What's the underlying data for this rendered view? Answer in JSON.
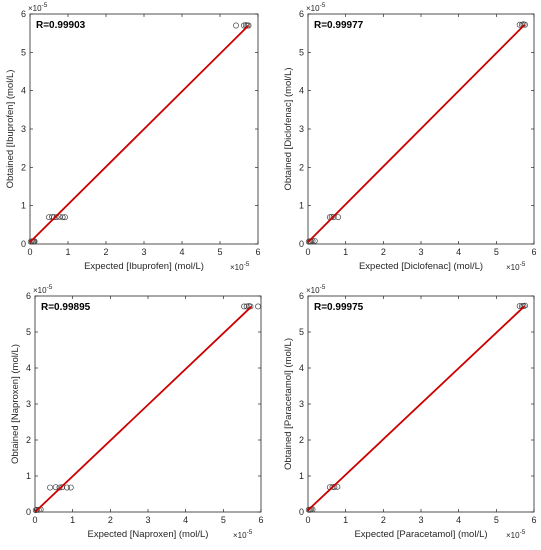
{
  "chart_data": [
    {
      "type": "scatter",
      "annotation": "R=0.99903",
      "xlabel": "Expected [Ibuprofen] (mol/L)",
      "ylabel": "Obtained [Ibuprofen] (mol/L)",
      "x_exponent": "×10",
      "x_exponent_power": "-5",
      "y_exponent": "×10",
      "y_exponent_power": "-5",
      "xlim": [
        0,
        6
      ],
      "ylim": [
        0,
        6
      ],
      "xticks": [
        "0",
        "1",
        "2",
        "3",
        "4",
        "5",
        "6"
      ],
      "yticks": [
        "0",
        "1",
        "2",
        "3",
        "4",
        "5",
        "6"
      ],
      "grid": false,
      "series": [
        {
          "marker": "circle-open",
          "color": "#444444",
          "x": [
            0.02,
            0.05,
            0.08,
            0.1,
            0.12,
            0.5,
            0.58,
            0.63,
            0.7,
            0.78,
            0.86,
            0.92,
            5.42,
            5.63,
            5.68,
            5.72,
            5.75
          ],
          "y": [
            0.06,
            0.07,
            0.06,
            0.07,
            0.07,
            0.7,
            0.71,
            0.7,
            0.7,
            0.71,
            0.7,
            0.7,
            5.7,
            5.7,
            5.71,
            5.7,
            5.7
          ]
        },
        {
          "type": "line",
          "color": "#cc0000",
          "x": [
            0.0,
            5.75
          ],
          "y": [
            0.05,
            5.7
          ]
        }
      ]
    },
    {
      "type": "scatter",
      "annotation": "R=0.99977",
      "xlabel": "Expected [Diclofenac] (mol/L)",
      "ylabel": "Obtained [Diclofenac] (mol/L)",
      "x_exponent": "×10",
      "x_exponent_power": "-5",
      "y_exponent": "×10",
      "y_exponent_power": "-5",
      "xlim": [
        0,
        6
      ],
      "ylim": [
        0,
        6
      ],
      "xticks": [
        "0",
        "1",
        "2",
        "3",
        "4",
        "5",
        "6"
      ],
      "yticks": [
        "0",
        "1",
        "2",
        "3",
        "4",
        "5",
        "6"
      ],
      "grid": false,
      "series": [
        {
          "marker": "circle-open",
          "color": "#444444",
          "x": [
            0.02,
            0.05,
            0.08,
            0.12,
            0.18,
            0.58,
            0.63,
            0.68,
            0.8,
            5.62,
            5.68,
            5.72,
            5.76
          ],
          "y": [
            0.06,
            0.07,
            0.07,
            0.08,
            0.08,
            0.7,
            0.71,
            0.7,
            0.7,
            5.72,
            5.72,
            5.73,
            5.72
          ]
        },
        {
          "type": "line",
          "color": "#cc0000",
          "x": [
            0.0,
            5.75
          ],
          "y": [
            0.05,
            5.72
          ]
        }
      ]
    },
    {
      "type": "scatter",
      "annotation": "R=0.99895",
      "xlabel": "Expected [Naproxen] (mol/L)",
      "ylabel": "Obtained [Naproxen] (mol/L)",
      "x_exponent": "×10",
      "x_exponent_power": "-5",
      "y_exponent": "×10",
      "y_exponent_power": "-5",
      "xlim": [
        0,
        6
      ],
      "ylim": [
        0,
        6
      ],
      "xticks": [
        "0",
        "1",
        "2",
        "3",
        "4",
        "5",
        "6"
      ],
      "yticks": [
        "0",
        "1",
        "2",
        "3",
        "4",
        "5",
        "6"
      ],
      "grid": false,
      "series": [
        {
          "marker": "circle-open",
          "color": "#444444",
          "x": [
            0.02,
            0.05,
            0.1,
            0.15,
            0.4,
            0.55,
            0.65,
            0.72,
            0.85,
            0.95,
            5.55,
            5.62,
            5.68,
            5.72,
            5.92
          ],
          "y": [
            0.05,
            0.06,
            0.06,
            0.07,
            0.68,
            0.69,
            0.68,
            0.69,
            0.68,
            0.68,
            5.71,
            5.71,
            5.72,
            5.71,
            5.71
          ]
        },
        {
          "type": "line",
          "color": "#cc0000",
          "x": [
            0.0,
            5.75
          ],
          "y": [
            0.0,
            5.71
          ]
        }
      ]
    },
    {
      "type": "scatter",
      "annotation": "R=0.99975",
      "xlabel": "Expected [Paracetamol] (mol/L)",
      "ylabel": "Obtained [Paracetamol] (mol/L)",
      "x_exponent": "×10",
      "x_exponent_power": "-5",
      "y_exponent": "×10",
      "y_exponent_power": "-5",
      "xlim": [
        0,
        6
      ],
      "ylim": [
        0,
        6
      ],
      "xticks": [
        "0",
        "1",
        "2",
        "3",
        "4",
        "5",
        "6"
      ],
      "yticks": [
        "0",
        "1",
        "2",
        "3",
        "4",
        "5",
        "6"
      ],
      "grid": false,
      "series": [
        {
          "marker": "circle-open",
          "color": "#444444",
          "x": [
            0.02,
            0.05,
            0.08,
            0.12,
            0.58,
            0.65,
            0.7,
            0.78,
            5.62,
            5.68,
            5.72,
            5.76
          ],
          "y": [
            0.06,
            0.06,
            0.07,
            0.07,
            0.69,
            0.7,
            0.69,
            0.7,
            5.72,
            5.72,
            5.72,
            5.73
          ]
        },
        {
          "type": "line",
          "color": "#cc0000",
          "x": [
            0.0,
            5.75
          ],
          "y": [
            0.05,
            5.72
          ]
        }
      ]
    }
  ]
}
